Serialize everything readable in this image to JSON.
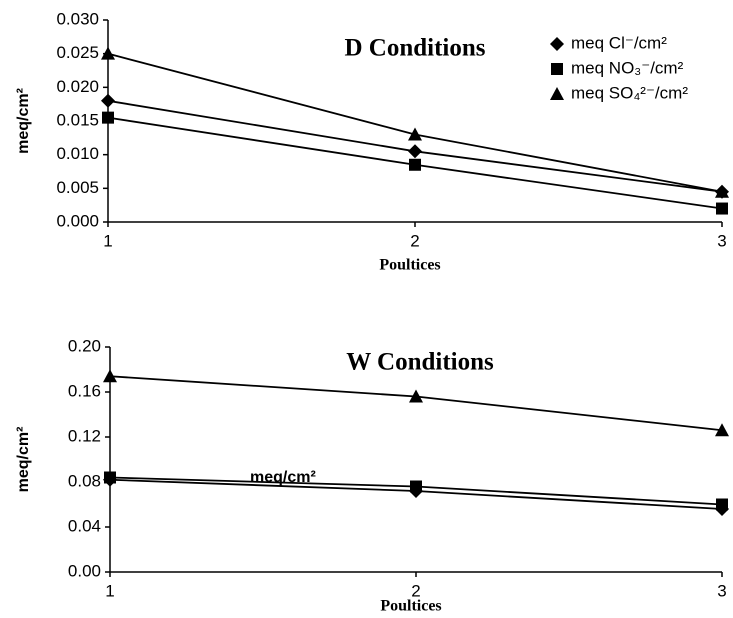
{
  "chart_data": [
    {
      "type": "line",
      "title": "D Conditions",
      "x_label": "Poultices",
      "y_label": "meq/cm²",
      "x": [
        1,
        2,
        3
      ],
      "xlim": [
        1,
        3
      ],
      "xticks": [
        1,
        2,
        3
      ],
      "ylim": [
        0,
        0.03
      ],
      "yticks": [
        {
          "value": 0,
          "label": "0.000"
        },
        {
          "value": 0.005,
          "label": "0.005"
        },
        {
          "value": 0.01,
          "label": "0.010"
        },
        {
          "value": 0.015,
          "label": "0.015"
        },
        {
          "value": 0.02,
          "label": "0.020"
        },
        {
          "value": 0.025,
          "label": "0.025"
        },
        {
          "value": 0.03,
          "label": "0.030"
        }
      ],
      "legend": "top-right",
      "series": [
        {
          "name": "meq Cl⁻/cm²",
          "color": "#000000",
          "marker": "diamond",
          "values": [
            0.018,
            0.0105,
            0.0045
          ]
        },
        {
          "name": "meq NO₃⁻/cm²",
          "color": "#000000",
          "marker": "square",
          "values": [
            0.0155,
            0.0085,
            0.002
          ]
        },
        {
          "name": "meq SO₄²⁻/cm²",
          "color": "#000000",
          "marker": "triangle",
          "values": [
            0.025,
            0.013,
            0.0045
          ]
        }
      ]
    },
    {
      "type": "line",
      "title": "W Conditions",
      "x_label": "Poultices",
      "y_label": "meq/cm²",
      "annotation": "meq/cm²",
      "x": [
        1,
        2,
        3
      ],
      "xlim": [
        1,
        3
      ],
      "xticks": [
        1,
        2,
        3
      ],
      "ylim": [
        0,
        0.2
      ],
      "yticks": [
        {
          "value": 0,
          "label": "0.00"
        },
        {
          "value": 0.04,
          "label": "0.04"
        },
        {
          "value": 0.08,
          "label": "0.08"
        },
        {
          "value": 0.12,
          "label": "0.12"
        },
        {
          "value": 0.16,
          "label": "0.16"
        },
        {
          "value": 0.2,
          "label": "0.20"
        }
      ],
      "series": [
        {
          "color": "#000000",
          "marker": "diamond",
          "values": [
            0.082,
            0.072,
            0.056
          ]
        },
        {
          "color": "#000000",
          "marker": "square",
          "values": [
            0.084,
            0.076,
            0.06
          ]
        },
        {
          "color": "#000000",
          "marker": "triangle",
          "values": [
            0.174,
            0.156,
            0.126
          ]
        }
      ]
    }
  ]
}
